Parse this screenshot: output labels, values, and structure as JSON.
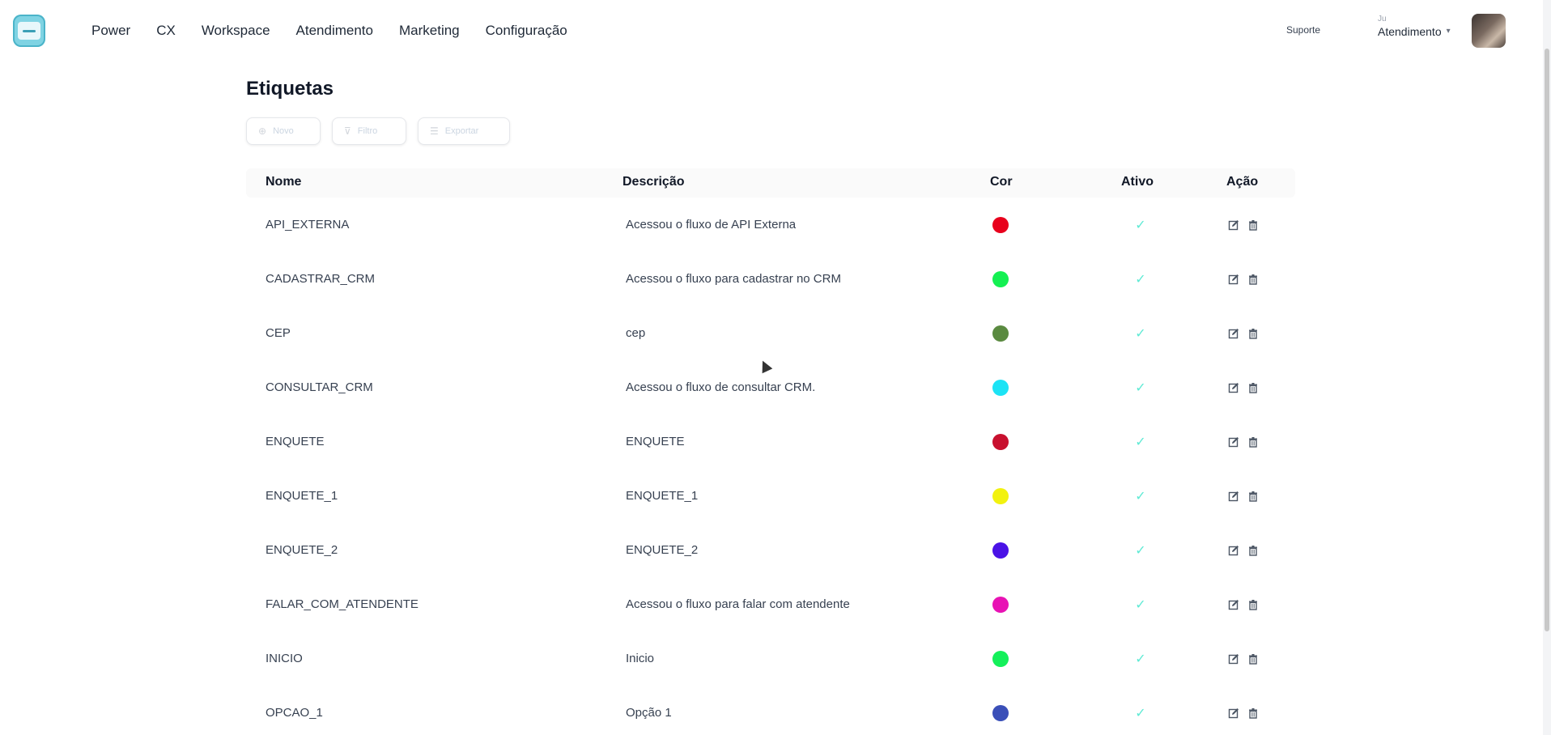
{
  "nav": {
    "items": [
      "Power",
      "CX",
      "Workspace",
      "Atendimento",
      "Marketing",
      "Configuração"
    ]
  },
  "header": {
    "support_label": "Suporte",
    "user_name": "Ju",
    "user_dept": "Atendimento"
  },
  "page": {
    "title": "Etiquetas",
    "toolbar": {
      "new_label": "Novo",
      "filter_label": "Filtro",
      "export_label": "Exportar"
    }
  },
  "table": {
    "headers": [
      "Nome",
      "Descrição",
      "Cor",
      "Ativo",
      "Ação"
    ],
    "rows": [
      {
        "nome": "API_EXTERNA",
        "descricao": "Acessou o fluxo de API Externa",
        "cor": "#e8001c",
        "ativo": true
      },
      {
        "nome": "CADASTRAR_CRM",
        "descricao": "Acessou o fluxo para cadastrar no CRM",
        "cor": "#14f052",
        "ativo": true
      },
      {
        "nome": "CEP",
        "descricao": "cep",
        "cor": "#5a8a40",
        "ativo": true
      },
      {
        "nome": "CONSULTAR_CRM",
        "descricao": "Acessou o fluxo de consultar CRM.",
        "cor": "#1ce3f5",
        "ativo": true
      },
      {
        "nome": "ENQUETE",
        "descricao": "ENQUETE",
        "cor": "#c8102e",
        "ativo": true
      },
      {
        "nome": "ENQUETE_1",
        "descricao": "ENQUETE_1",
        "cor": "#f2f20f",
        "ativo": true
      },
      {
        "nome": "ENQUETE_2",
        "descricao": "ENQUETE_2",
        "cor": "#4a12e6",
        "ativo": true
      },
      {
        "nome": "FALAR_COM_ATENDENTE",
        "descricao": "Acessou o fluxo para falar com atendente",
        "cor": "#e812b4",
        "ativo": true
      },
      {
        "nome": "INICIO",
        "descricao": "Inicio",
        "cor": "#14f05a",
        "ativo": true
      },
      {
        "nome": "OPCAO_1",
        "descricao": "Opção 1",
        "cor": "#3a4fb8",
        "ativo": true
      }
    ]
  }
}
